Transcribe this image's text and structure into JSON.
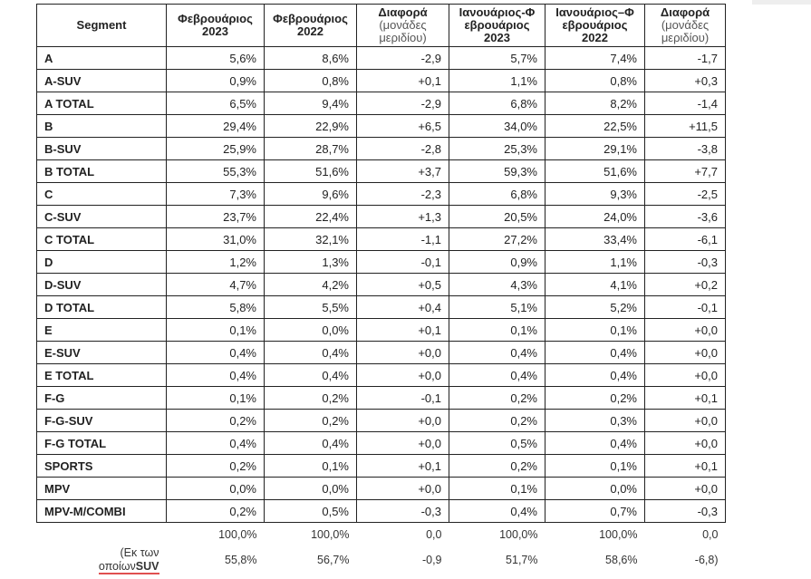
{
  "headers": [
    {
      "main": "Segment",
      "sub": ""
    },
    {
      "main": "Φεβρουάριος 2023",
      "sub": ""
    },
    {
      "main": "Φεβρουάριος 2022",
      "sub": ""
    },
    {
      "main": "Διαφορά",
      "sub": "(μονάδες μεριδίου)"
    },
    {
      "main": "Ιανουάριος-Φ εβρουάριος 2023",
      "sub": ""
    },
    {
      "main": "Ιανουάριος–Φ εβρουάριος 2022",
      "sub": ""
    },
    {
      "main": "Διαφορά",
      "sub": "(μονάδες μεριδίου)"
    }
  ],
  "rows": [
    [
      "A",
      "5,6%",
      "8,6%",
      "-2,9",
      "5,7%",
      "7,4%",
      "-1,7"
    ],
    [
      "A-SUV",
      "0,9%",
      "0,8%",
      "+0,1",
      "1,1%",
      "0,8%",
      "+0,3"
    ],
    [
      "A TOTAL",
      "6,5%",
      "9,4%",
      "-2,9",
      "6,8%",
      "8,2%",
      "-1,4"
    ],
    [
      "B",
      "29,4%",
      "22,9%",
      "+6,5",
      "34,0%",
      "22,5%",
      "+11,5"
    ],
    [
      "B-SUV",
      "25,9%",
      "28,7%",
      "-2,8",
      "25,3%",
      "29,1%",
      "-3,8"
    ],
    [
      "B TOTAL",
      "55,3%",
      "51,6%",
      "+3,7",
      "59,3%",
      "51,6%",
      "+7,7"
    ],
    [
      "C",
      "7,3%",
      "9,6%",
      "-2,3",
      "6,8%",
      "9,3%",
      "-2,5"
    ],
    [
      "C-SUV",
      "23,7%",
      "22,4%",
      "+1,3",
      "20,5%",
      "24,0%",
      "-3,6"
    ],
    [
      "C TOTAL",
      "31,0%",
      "32,1%",
      "-1,1",
      "27,2%",
      "33,4%",
      "-6,1"
    ],
    [
      "D",
      "1,2%",
      "1,3%",
      "-0,1",
      "0,9%",
      "1,1%",
      "-0,3"
    ],
    [
      "D-SUV",
      "4,7%",
      "4,2%",
      "+0,5",
      "4,3%",
      "4,1%",
      "+0,2"
    ],
    [
      "D TOTAL",
      "5,8%",
      "5,5%",
      "+0,4",
      "5,1%",
      "5,2%",
      "-0,1"
    ],
    [
      "E",
      "0,1%",
      "0,0%",
      "+0,1",
      "0,1%",
      "0,1%",
      "+0,0"
    ],
    [
      "E-SUV",
      "0,4%",
      "0,4%",
      "+0,0",
      "0,4%",
      "0,4%",
      "+0,0"
    ],
    [
      "E TOTAL",
      "0,4%",
      "0,4%",
      "+0,0",
      "0,4%",
      "0,4%",
      "+0,0"
    ],
    [
      "F-G",
      "0,1%",
      "0,2%",
      "-0,1",
      "0,2%",
      "0,2%",
      "+0,1"
    ],
    [
      "F-G-SUV",
      "0,2%",
      "0,2%",
      "+0,0",
      "0,2%",
      "0,3%",
      "+0,0"
    ],
    [
      "F-G TOTAL",
      "0,4%",
      "0,4%",
      "+0,0",
      "0,5%",
      "0,4%",
      "+0,0"
    ],
    [
      "SPORTS",
      "0,2%",
      "0,1%",
      "+0,1",
      "0,2%",
      "0,1%",
      "+0,1"
    ],
    [
      "MPV",
      "0,0%",
      "0,0%",
      "+0,0",
      "0,1%",
      "0,0%",
      "+0,0"
    ],
    [
      "MPV-M/COMBI",
      "0,2%",
      "0,5%",
      "-0,3",
      "0,4%",
      "0,7%",
      "-0,3"
    ]
  ],
  "total": [
    "",
    "100,0%",
    "100,0%",
    "0,0",
    "100,0%",
    "100,0%",
    "0,0"
  ],
  "suv": {
    "label_line1": "(Εκ των",
    "label_line2a": "οποίων",
    "label_line2b": "SUV",
    "values": [
      "55,8%",
      "56,7%",
      "-0,9",
      "51,7%",
      "58,6%",
      "-6,8)"
    ]
  }
}
